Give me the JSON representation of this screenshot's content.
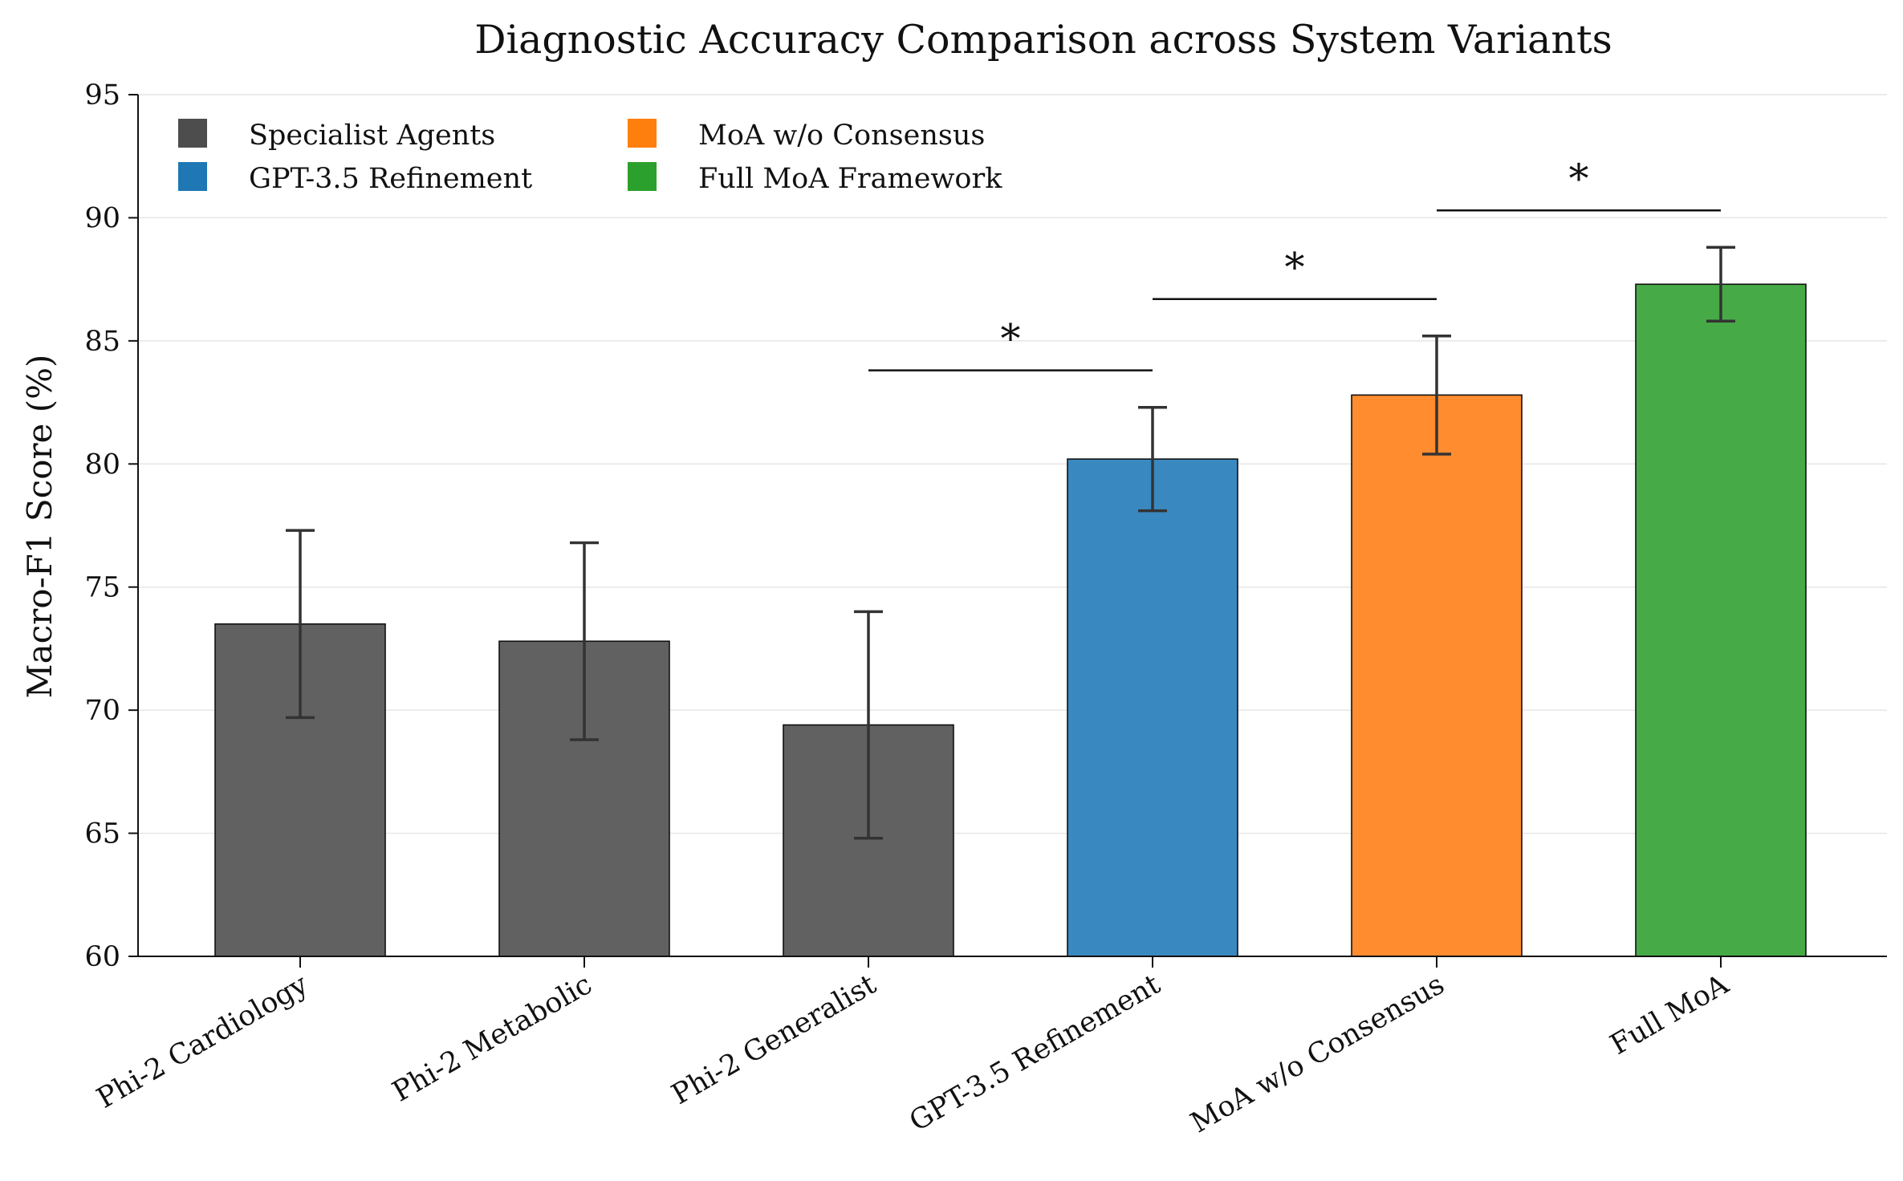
{
  "chart_data": {
    "type": "bar",
    "title": "Diagnostic Accuracy Comparison across System Variants",
    "xlabel": "",
    "ylabel": "Macro-F1 Score (%)",
    "ylim": [
      60,
      95
    ],
    "yticks": [
      60,
      65,
      70,
      75,
      80,
      85,
      90,
      95
    ],
    "grid": "horizontal",
    "legend_placement": "top-left",
    "categories": [
      "Phi-2 Cardiology",
      "Phi-2 Metabolic",
      "Phi-2 Generalist",
      "GPT-3.5 Refinement",
      "MoA w/o Consensus",
      "Full MoA"
    ],
    "values": [
      73.5,
      72.8,
      69.4,
      80.2,
      82.8,
      87.3
    ],
    "errors": [
      3.8,
      4.0,
      4.6,
      2.1,
      2.4,
      1.5
    ],
    "bar_groups": [
      0,
      0,
      0,
      1,
      2,
      3
    ],
    "legend": [
      {
        "label": "Specialist Agents",
        "color": "#4d4d4d"
      },
      {
        "label": "GPT-3.5 Refinement",
        "color": "#1f77b4"
      },
      {
        "label": "MoA w/o Consensus",
        "color": "#ff7f0e"
      },
      {
        "label": "Full MoA Framework",
        "color": "#2ca02c"
      }
    ],
    "bar_colors": [
      "#616161",
      "#616161",
      "#616161",
      "#3a88c0",
      "#ff8c2e",
      "#46aa46"
    ],
    "significance": [
      {
        "from": 2,
        "to": 3,
        "level": 83.8,
        "label": "*"
      },
      {
        "from": 3,
        "to": 4,
        "level": 86.7,
        "label": "*"
      },
      {
        "from": 4,
        "to": 5,
        "level": 90.3,
        "label": "*"
      }
    ]
  }
}
